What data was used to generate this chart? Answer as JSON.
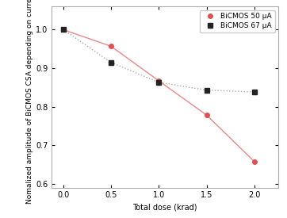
{
  "series": [
    {
      "label": "BiCMOS 50 μA",
      "x": [
        0.0,
        0.5,
        1.0,
        1.5,
        2.0
      ],
      "y": [
        1.0,
        0.957,
        0.867,
        0.778,
        0.657
      ],
      "color": "#e05050",
      "line_color": "#e88888",
      "linestyle": "-",
      "marker": "o",
      "markersize": 4,
      "linewidth": 1.0
    },
    {
      "label": "BiCMOS 67 μA",
      "x": [
        0.0,
        0.5,
        1.0,
        1.5,
        2.0
      ],
      "y": [
        1.0,
        0.915,
        0.863,
        0.843,
        0.838
      ],
      "color": "#222222",
      "line_color": "#aaaaaa",
      "linestyle": ":",
      "marker": "s",
      "markersize": 4,
      "linewidth": 1.0
    }
  ],
  "xlabel": "Total dose (krad)",
  "ylabel": "Nomalized amplitude of BiCMOS CSA depending on current",
  "xlim": [
    -0.12,
    2.25
  ],
  "ylim": [
    0.59,
    1.06
  ],
  "xticks": [
    0.0,
    0.5,
    1.0,
    1.5,
    2.0
  ],
  "yticks": [
    0.6,
    0.7,
    0.8,
    0.9,
    1.0
  ],
  "background_color": "#ffffff",
  "legend_loc": "upper right",
  "label_fontsize": 7,
  "tick_fontsize": 7
}
